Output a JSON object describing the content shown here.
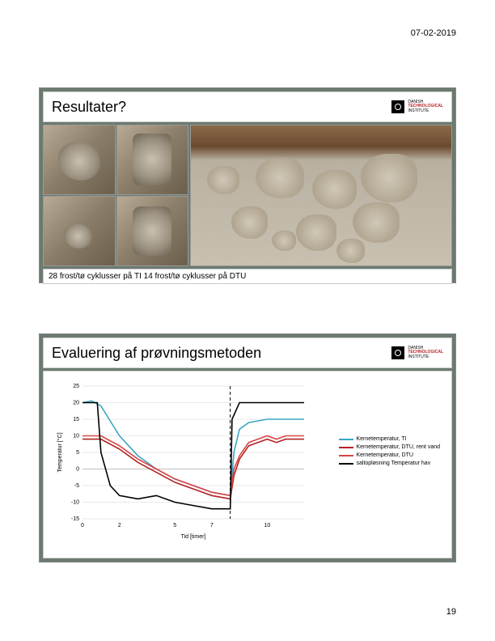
{
  "header": {
    "date": "07-02-2019"
  },
  "footer": {
    "page": "19"
  },
  "slide1": {
    "title": "Resultater?",
    "logo_line1": "DANISH",
    "logo_line2": "TECHNOLOGICAL",
    "logo_line3": "INSTITUTE",
    "caption": "28 frost/tø cyklusser på TI 14 frost/tø cyklusser på DTU"
  },
  "slide2": {
    "title": "Evaluering af prøvningsmetoden",
    "logo_line1": "DANISH",
    "logo_line2": "TECHNOLOGICAL",
    "logo_line3": "INSTITUTE",
    "chart": {
      "type": "line",
      "ylabel": "Temperatur [°C]",
      "xlabel": "Tid [timer]",
      "ylim": [
        -15,
        25
      ],
      "ytick_step": 5,
      "yticks": [
        25,
        20,
        15,
        10,
        5,
        0,
        -5,
        -10,
        -15
      ],
      "xticks": [
        0,
        2,
        5,
        7,
        10
      ],
      "dash_x": 8,
      "series": [
        {
          "name": "Kernetemperatur, TI",
          "color": "#3aa6c4",
          "points": [
            [
              0,
              20
            ],
            [
              0.5,
              20.5
            ],
            [
              1,
              19
            ],
            [
              2,
              10
            ],
            [
              3,
              4
            ],
            [
              4,
              0
            ],
            [
              5,
              -3
            ],
            [
              6,
              -5
            ],
            [
              7,
              -7
            ],
            [
              8,
              -8
            ],
            [
              8.2,
              5
            ],
            [
              8.5,
              12
            ],
            [
              9,
              14
            ],
            [
              10,
              15
            ],
            [
              11,
              15
            ],
            [
              12,
              15
            ]
          ]
        },
        {
          "name": "Kernetemperatur, DTU, rent vand",
          "color": "#b22222",
          "points": [
            [
              0,
              9
            ],
            [
              1,
              9
            ],
            [
              2,
              6
            ],
            [
              3,
              2
            ],
            [
              4,
              -1
            ],
            [
              5,
              -4
            ],
            [
              6,
              -6
            ],
            [
              7,
              -8
            ],
            [
              8,
              -9
            ],
            [
              8.2,
              -2
            ],
            [
              8.5,
              3
            ],
            [
              9,
              7
            ],
            [
              10,
              9
            ],
            [
              10.5,
              8
            ],
            [
              11,
              9
            ],
            [
              12,
              9
            ]
          ]
        },
        {
          "name": "Kernetemperatur, DTU",
          "color": "#d94545",
          "points": [
            [
              0,
              10
            ],
            [
              1,
              10
            ],
            [
              2,
              7
            ],
            [
              3,
              3
            ],
            [
              4,
              0
            ],
            [
              5,
              -3
            ],
            [
              6,
              -5
            ],
            [
              7,
              -7
            ],
            [
              8,
              -8
            ],
            [
              8.2,
              0
            ],
            [
              8.5,
              4
            ],
            [
              9,
              8
            ],
            [
              10,
              10
            ],
            [
              10.5,
              9
            ],
            [
              11,
              10
            ],
            [
              12,
              10
            ]
          ]
        },
        {
          "name": "saltopløsning Temperatur hav",
          "color": "#000000",
          "points": [
            [
              0,
              20
            ],
            [
              0.8,
              20
            ],
            [
              1,
              5
            ],
            [
              1.5,
              -5
            ],
            [
              2,
              -8
            ],
            [
              3,
              -9
            ],
            [
              4,
              -8
            ],
            [
              5,
              -10
            ],
            [
              6,
              -11
            ],
            [
              7,
              -12
            ],
            [
              8,
              -12
            ],
            [
              8.1,
              15
            ],
            [
              8.5,
              20
            ],
            [
              9,
              20
            ],
            [
              12,
              20
            ]
          ]
        }
      ],
      "legend_items": [
        {
          "color": "#3aa6c4",
          "label": "Kernetemperatur, TI"
        },
        {
          "color": "#b22222",
          "label": "Kernetemperatur, DTU, rent vand"
        },
        {
          "color": "#d94545",
          "label": "Kernetemperatur, DTU"
        },
        {
          "color": "#000000",
          "label": "saltopløsning Temperatur hav"
        }
      ],
      "background_color": "#ffffff",
      "grid_color": "#d0d0d0"
    }
  }
}
